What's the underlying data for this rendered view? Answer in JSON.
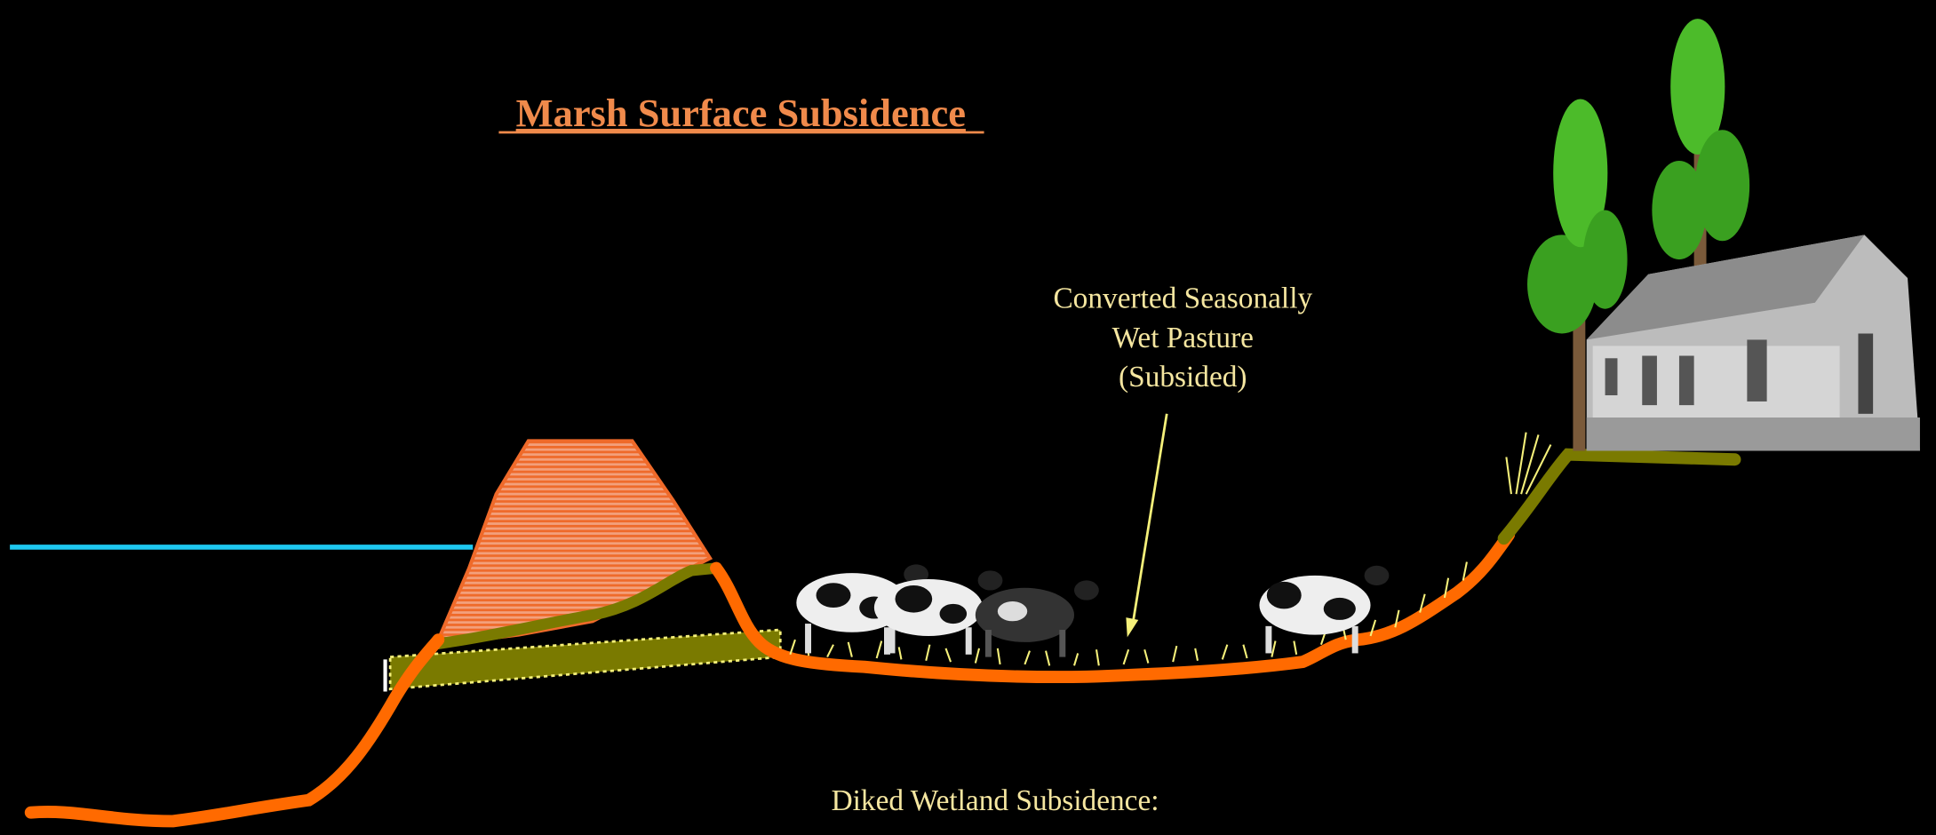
{
  "title": "Marsh Surface Subsidence",
  "annotation": {
    "lines": [
      "Converted Seasonally",
      "Wet Pasture",
      "(Subsided)"
    ]
  },
  "caption": "Diked Wetland Subsidence:"
}
